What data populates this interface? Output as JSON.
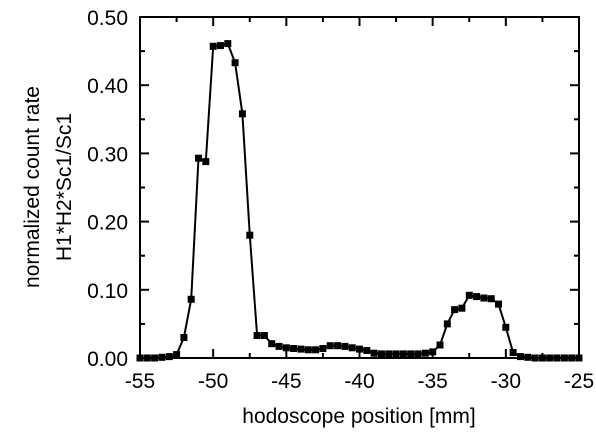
{
  "chart_data": {
    "type": "line",
    "title": "",
    "xlabel": "hodoscope position [mm]",
    "ylabel": [
      "normalized count rate",
      "H1*H2*Sc1/Sc1"
    ],
    "xlim": [
      -55,
      -25
    ],
    "ylim": [
      0,
      0.5
    ],
    "x_ticks": [
      -55,
      -50,
      -45,
      -40,
      -35,
      -30,
      -25
    ],
    "x_tick_labels": [
      "-55",
      "-50",
      "-45",
      "-40",
      "-35",
      "-30",
      "-25"
    ],
    "y_ticks": [
      0,
      0.1,
      0.2,
      0.3,
      0.4,
      0.5
    ],
    "y_tick_labels": [
      "0.00",
      "0.10",
      "0.20",
      "0.30",
      "0.40",
      "0.50"
    ],
    "grid": false,
    "marker": "square",
    "line_color": "#000000",
    "series": [
      {
        "x": [
          -55.0,
          -54.5,
          -54.0,
          -53.5,
          -53.0,
          -52.5,
          -52.0,
          -51.5,
          -51.0,
          -50.5,
          -50.0,
          -49.5,
          -49.0,
          -48.5,
          -48.0,
          -47.5,
          -47.0,
          -46.5,
          -46.0,
          -45.5,
          -45.0,
          -44.5,
          -44.0,
          -43.5,
          -43.0,
          -42.5,
          -42.0,
          -41.5,
          -41.0,
          -40.5,
          -40.0,
          -39.5,
          -39.0,
          -38.5,
          -38.0,
          -37.5,
          -37.0,
          -36.5,
          -36.0,
          -35.5,
          -35.0,
          -34.5,
          -34.0,
          -33.5,
          -33.0,
          -32.5,
          -32.0,
          -31.5,
          -31.0,
          -30.5,
          -30.0,
          -29.5,
          -29.0,
          -28.5,
          -28.0,
          -27.5,
          -27.0,
          -26.5,
          -26.0,
          -25.5,
          -25.0
        ],
        "y": [
          0.0,
          0.0,
          0.0,
          0.001,
          0.002,
          0.005,
          0.03,
          0.086,
          0.293,
          0.288,
          0.457,
          0.458,
          0.461,
          0.433,
          0.358,
          0.18,
          0.033,
          0.033,
          0.021,
          0.017,
          0.015,
          0.014,
          0.013,
          0.012,
          0.012,
          0.014,
          0.018,
          0.018,
          0.017,
          0.015,
          0.013,
          0.011,
          0.007,
          0.006,
          0.006,
          0.006,
          0.006,
          0.006,
          0.006,
          0.007,
          0.009,
          0.019,
          0.05,
          0.071,
          0.073,
          0.092,
          0.09,
          0.088,
          0.087,
          0.079,
          0.045,
          0.008,
          0.002,
          0.001,
          0.0,
          0.0,
          0.0,
          0.0,
          0.0,
          0.0,
          0.0
        ]
      }
    ]
  }
}
